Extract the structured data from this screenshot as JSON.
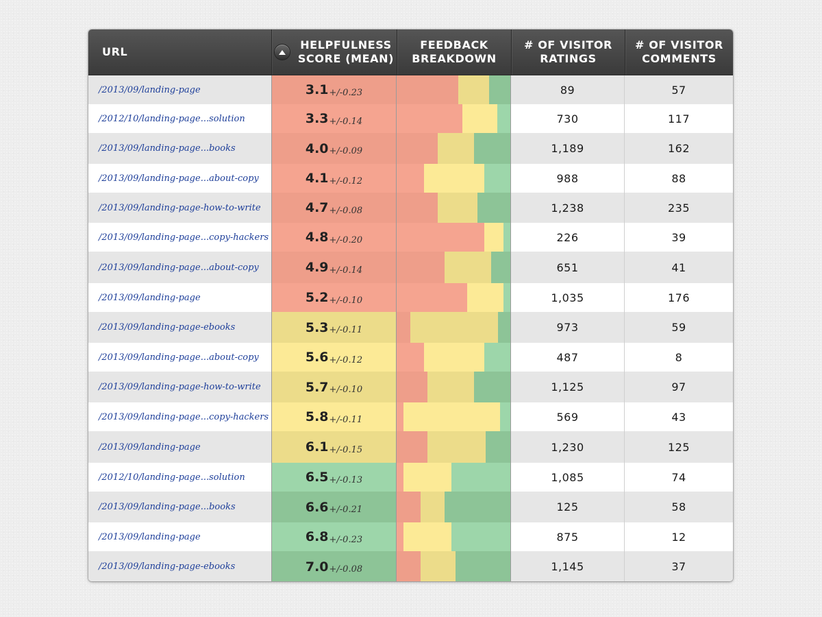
{
  "header": {
    "url": "URL",
    "score": [
      "HELPFULNESS",
      "SCORE (MEAN)"
    ],
    "feedback": [
      "FEEDBACK",
      "BREAKDOWN"
    ],
    "ratings": [
      "# OF VISITOR",
      "RATINGS"
    ],
    "comments": [
      "# OF VISITOR",
      "COMMENTS"
    ],
    "sort_icon": "sort-up-icon"
  },
  "colors": {
    "red": "#f5a490",
    "red_dark": "#ee9e8a",
    "yellow": "#fcea96",
    "yellow_dark": "#ecdc8a",
    "green": "#9dd6aa",
    "green_dark": "#8dc497"
  },
  "rows": [
    {
      "url": "/2013/09/landing-page",
      "mean": "3.1",
      "err": "+/-0.23",
      "tone": "red",
      "breakdown": [
        0.54,
        0.27,
        0.19
      ],
      "ratings": "89",
      "comments": "57"
    },
    {
      "url": "/2012/10/landing-page...solution",
      "mean": "3.3",
      "err": "+/-0.14",
      "tone": "red",
      "breakdown": [
        0.58,
        0.31,
        0.11
      ],
      "ratings": "730",
      "comments": "117"
    },
    {
      "url": "/2013/09/landing-page...books",
      "mean": "4.0",
      "err": "+/-0.09",
      "tone": "red",
      "breakdown": [
        0.36,
        0.32,
        0.32
      ],
      "ratings": "1,189",
      "comments": "162"
    },
    {
      "url": "/2013/09/landing-page...about-copy",
      "mean": "4.1",
      "err": "+/-0.12",
      "tone": "red",
      "breakdown": [
        0.24,
        0.53,
        0.23
      ],
      "ratings": "988",
      "comments": "88"
    },
    {
      "url": "/2013/09/landing-page-how-to-write",
      "mean": "4.7",
      "err": "+/-0.08",
      "tone": "red",
      "breakdown": [
        0.36,
        0.35,
        0.29
      ],
      "ratings": "1,238",
      "comments": "235"
    },
    {
      "url": "/2013/09/landing-page...copy-hackers",
      "mean": "4.8",
      "err": "+/-0.20",
      "tone": "red",
      "breakdown": [
        0.77,
        0.17,
        0.06
      ],
      "ratings": "226",
      "comments": "39"
    },
    {
      "url": "/2013/09/landing-page...about-copy",
      "mean": "4.9",
      "err": "+/-0.14",
      "tone": "red",
      "breakdown": [
        0.42,
        0.41,
        0.17
      ],
      "ratings": "651",
      "comments": "41"
    },
    {
      "url": "/2013/09/landing-page",
      "mean": "5.2",
      "err": "+/-0.10",
      "tone": "red",
      "breakdown": [
        0.62,
        0.32,
        0.06
      ],
      "ratings": "1,035",
      "comments": "176"
    },
    {
      "url": "/2013/09/landing-page-ebooks",
      "mean": "5.3",
      "err": "+/-0.11",
      "tone": "yellow",
      "breakdown": [
        0.12,
        0.77,
        0.11
      ],
      "ratings": "973",
      "comments": "59"
    },
    {
      "url": "/2013/09/landing-page...about-copy",
      "mean": "5.6",
      "err": "+/-0.12",
      "tone": "yellow",
      "breakdown": [
        0.24,
        0.53,
        0.23
      ],
      "ratings": "487",
      "comments": "8"
    },
    {
      "url": "/2013/09/landing-page-how-to-write",
      "mean": "5.7",
      "err": "+/-0.10",
      "tone": "yellow",
      "breakdown": [
        0.27,
        0.41,
        0.32
      ],
      "ratings": "1,125",
      "comments": "97"
    },
    {
      "url": "/2013/09/landing-page...copy-hackers",
      "mean": "5.8",
      "err": "+/-0.11",
      "tone": "yellow",
      "breakdown": [
        0.06,
        0.85,
        0.09
      ],
      "ratings": "569",
      "comments": "43"
    },
    {
      "url": "/2013/09/landing-page",
      "mean": "6.1",
      "err": "+/-0.15",
      "tone": "yellow",
      "breakdown": [
        0.27,
        0.51,
        0.22
      ],
      "ratings": "1,230",
      "comments": "125"
    },
    {
      "url": "/2012/10/landing-page...solution",
      "mean": "6.5",
      "err": "+/-0.13",
      "tone": "green",
      "breakdown": [
        0.06,
        0.42,
        0.52
      ],
      "ratings": "1,085",
      "comments": "74"
    },
    {
      "url": "/2013/09/landing-page...books",
      "mean": "6.6",
      "err": "+/-0.21",
      "tone": "green",
      "breakdown": [
        0.21,
        0.21,
        0.58
      ],
      "ratings": "125",
      "comments": "58"
    },
    {
      "url": "/2013/09/landing-page",
      "mean": "6.8",
      "err": "+/-0.23",
      "tone": "green",
      "breakdown": [
        0.06,
        0.42,
        0.52
      ],
      "ratings": "875",
      "comments": "12"
    },
    {
      "url": "/2013/09/landing-page-ebooks",
      "mean": "7.0",
      "err": "+/-0.08",
      "tone": "green",
      "breakdown": [
        0.21,
        0.31,
        0.48
      ],
      "ratings": "1,145",
      "comments": "37"
    }
  ]
}
